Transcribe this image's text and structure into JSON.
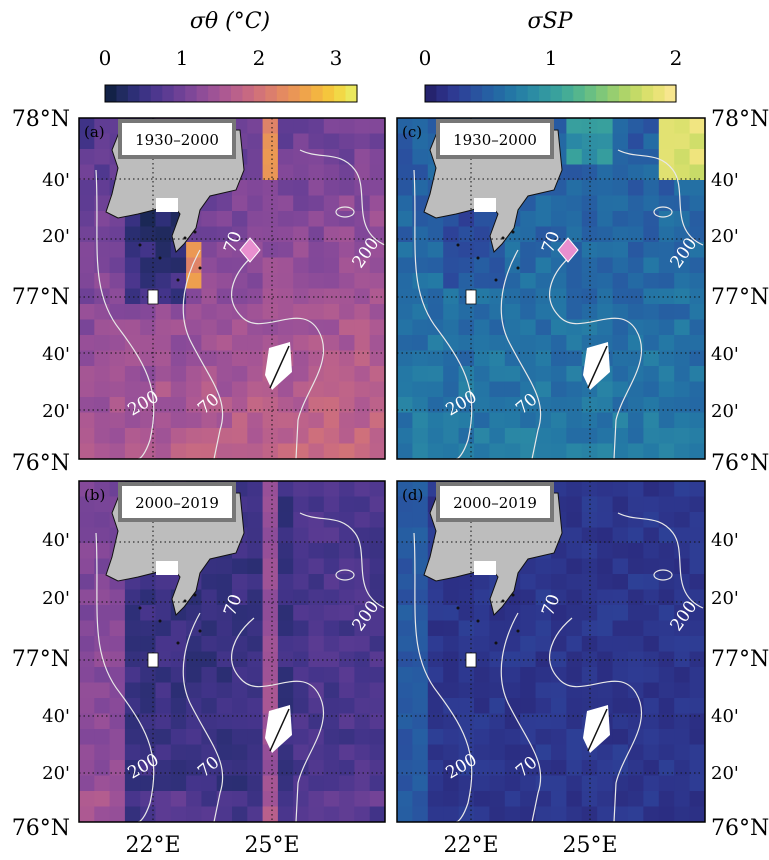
{
  "colorbars": [
    {
      "label": "σθ  (°C)",
      "ticks": [
        "0",
        "1",
        "2",
        "3"
      ],
      "tick_values": [
        0,
        1,
        2,
        3
      ],
      "range": [
        0,
        3.3
      ],
      "colors": [
        "#0b1d3a",
        "#1f2a5c",
        "#2e2f78",
        "#43348a",
        "#583a92",
        "#6d4196",
        "#834899",
        "#985098",
        "#ab5893",
        "#bc628a",
        "#cc6d7e",
        "#d97b70",
        "#e48a61",
        "#ec9a52",
        "#f2ad45",
        "#f5c43c",
        "#f1dc48",
        "#e8f06a"
      ]
    },
    {
      "label": "σSP",
      "ticks": [
        "0",
        "1",
        "2"
      ],
      "tick_values": [
        0,
        1,
        2
      ],
      "range": [
        0,
        2
      ],
      "colors": [
        "#221e62",
        "#2b2c80",
        "#2e3b93",
        "#2b4b9d",
        "#275ba2",
        "#246aa4",
        "#2479a5",
        "#2a87a5",
        "#3195a2",
        "#3aa39c",
        "#4bb193",
        "#63bd86",
        "#80c779",
        "#9fd06d",
        "#bcd866",
        "#d8e06b",
        "#eee47b",
        "#fce89a"
      ]
    }
  ],
  "panels": [
    {
      "tag": "(a)",
      "period": "1930–2000"
    },
    {
      "tag": "(b)",
      "period": "2000–2019"
    },
    {
      "tag": "(c)",
      "period": "1930–2000"
    },
    {
      "tag": "(d)",
      "period": "2000–2019"
    }
  ],
  "lat_labels": [
    "78°N",
    "40'",
    "20'",
    "77°N",
    "40'",
    "20'",
    "76°N"
  ],
  "lon_labels": [
    "22°E",
    "25°E"
  ],
  "contour_labels": [
    "70",
    "200",
    "200",
    "70"
  ],
  "chart_data": [
    {
      "type": "heatmap",
      "panel": "(a)",
      "title": "1930–2000",
      "variable": "σθ (°C)",
      "x": [
        "22°E",
        "25°E"
      ],
      "y": [
        "76°N",
        "77°N",
        "78°N"
      ],
      "value_range": [
        0,
        3.3
      ],
      "notable_values": [
        {
          "location": "north near 25°E",
          "value": 2.8
        },
        {
          "location": "east of Edgeøya coast",
          "value": 2.3
        },
        {
          "location": "south interior",
          "value": 1.5
        },
        {
          "location": "channel near 22°E",
          "value": 0.3
        }
      ]
    },
    {
      "type": "heatmap",
      "panel": "(b)",
      "title": "2000–2019",
      "variable": "σθ (°C)",
      "x": [
        "22°E",
        "25°E"
      ],
      "y": [
        "76°N",
        "77°N",
        "78°N"
      ],
      "value_range": [
        0,
        3.3
      ],
      "notable_values": [
        {
          "location": "25°E column",
          "value": 1.8
        },
        {
          "location": "west margin",
          "value": 1.0
        },
        {
          "location": "central",
          "value": 0.1
        }
      ]
    },
    {
      "type": "heatmap",
      "panel": "(c)",
      "title": "1930–2000",
      "variable": "σSP",
      "x": [
        "22°E",
        "25°E"
      ],
      "y": [
        "76°N",
        "77°N",
        "78°N"
      ],
      "value_range": [
        0,
        2
      ],
      "notable_values": [
        {
          "location": "northeast corner",
          "value": 1.9
        },
        {
          "location": "north near 25°E",
          "value": 1.0
        },
        {
          "location": "south",
          "value": 0.6
        }
      ]
    },
    {
      "type": "heatmap",
      "panel": "(d)",
      "title": "2000–2019",
      "variable": "σSP",
      "x": [
        "22°E",
        "25°E"
      ],
      "y": [
        "76°N",
        "77°N",
        "78°N"
      ],
      "value_range": [
        0,
        2
      ],
      "notable_values": [
        {
          "location": "west margin",
          "value": 0.5
        },
        {
          "location": "interior",
          "value": 0.2
        }
      ]
    }
  ]
}
